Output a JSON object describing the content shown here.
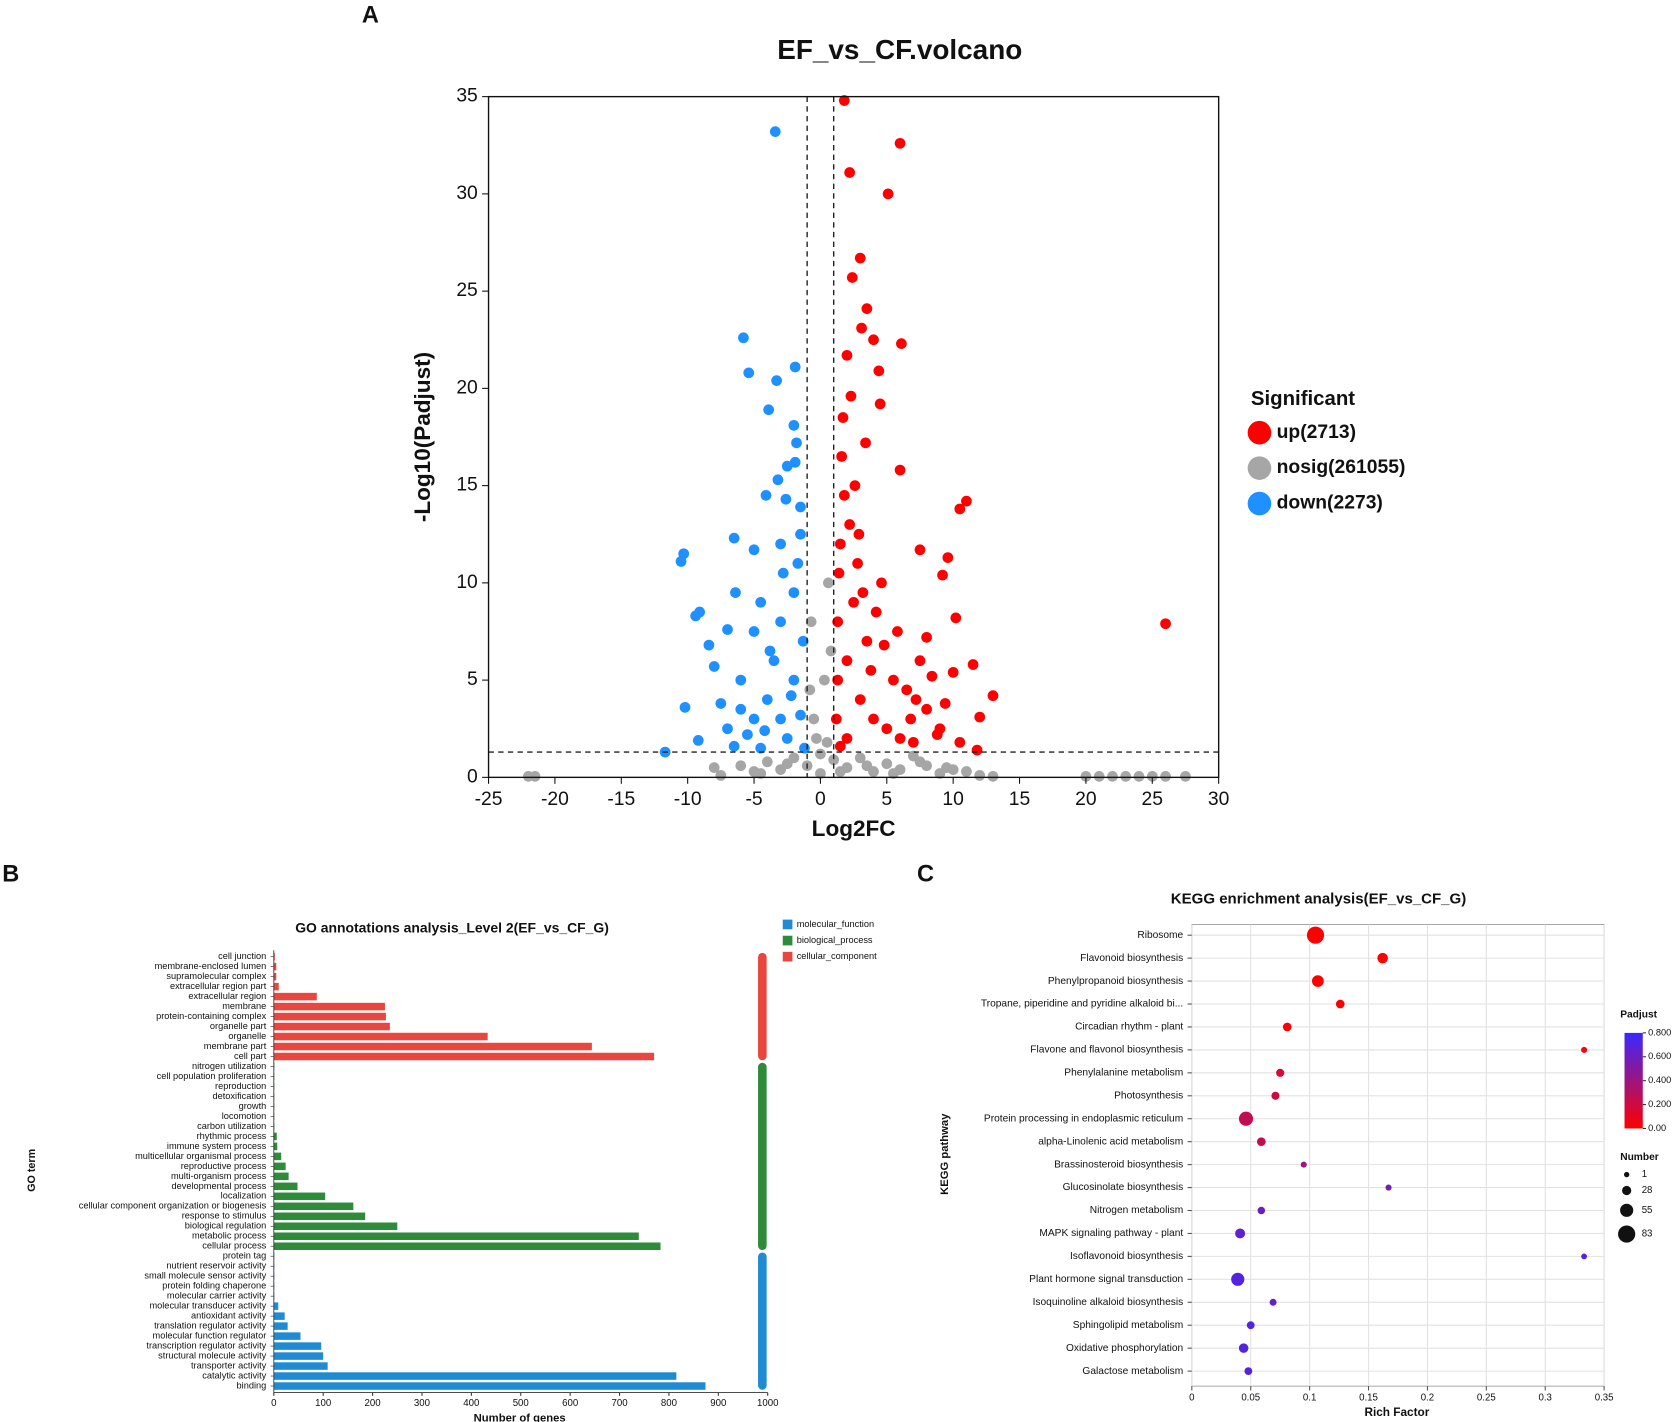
{
  "chart_data": [
    {
      "type": "scatter",
      "panel": "A",
      "title": "EF_vs_CF.volcano",
      "x_label": "Log2FC",
      "y_label": "-Log10(Padjust)",
      "xlim": [
        -25,
        30
      ],
      "ylim": [
        0,
        35
      ],
      "xticks": [
        -25,
        -20,
        -15,
        -10,
        -5,
        0,
        5,
        10,
        15,
        20,
        25,
        30
      ],
      "yticks": [
        0,
        5,
        10,
        15,
        20,
        25,
        30,
        35
      ],
      "thresholds": {
        "x": [
          -1,
          1
        ],
        "y": 1.3
      },
      "legend_title": "Significant",
      "series": [
        {
          "name": "up(2713)",
          "color": "#ff0000",
          "x": [
            1.8,
            6,
            2.2,
            5.1,
            3,
            2.4,
            3.5,
            3.1,
            4,
            6.1,
            2,
            4.4,
            2.3,
            4.5,
            3.4,
            6,
            11,
            10.5,
            7.5,
            9.6,
            9.2,
            26,
            11.5,
            10,
            13,
            12,
            11.8,
            1.3,
            2,
            3,
            4,
            5,
            6,
            7,
            8,
            1.5,
            2.5,
            1.2,
            3.5,
            5.5,
            7.5,
            9,
            10.5,
            2,
            1.5,
            1.4,
            1.8,
            2.2,
            2.8,
            3.2,
            4.2,
            4.8,
            5.8,
            6.5,
            7.2,
            8.4,
            8.8,
            9.4,
            10.2,
            1.6,
            2.6,
            3.8,
            4.6,
            6.8,
            8,
            1.3,
            1.7,
            2.9
          ],
          "y": [
            34.8,
            32.6,
            31.1,
            30,
            26.7,
            25.7,
            24.1,
            23.1,
            22.5,
            22.3,
            21.7,
            20.9,
            19.6,
            19.2,
            17.2,
            15.8,
            14.2,
            13.8,
            11.7,
            11.3,
            10.4,
            7.9,
            5.8,
            5.4,
            4.2,
            3.1,
            1.4,
            8,
            6,
            4,
            3,
            2.5,
            2,
            1.8,
            3.5,
            12,
            9,
            3,
            7,
            5,
            6,
            2.5,
            1.8,
            2,
            1.6,
            10.5,
            14.5,
            13,
            11,
            9.5,
            8.5,
            6.8,
            7.5,
            4.5,
            4,
            5.2,
            2.2,
            3.8,
            8.2,
            16.5,
            15,
            5.5,
            10,
            3,
            7.2,
            5,
            18.5,
            12.5
          ]
        },
        {
          "name": "nosig(261055)",
          "color": "#a6a6a6",
          "x": [
            -22,
            -21.5,
            -8,
            -7.5,
            -6,
            -5,
            -4,
            -3,
            -2,
            -1,
            0,
            1,
            2,
            3,
            4,
            5,
            6,
            7,
            8,
            9,
            10,
            12,
            13,
            20,
            21,
            22,
            23,
            24,
            25,
            26,
            27.5,
            -0.5,
            0.3,
            -0.7,
            0.6,
            -0.3,
            0.5,
            -0.8,
            0.8,
            0,
            -4.5,
            -2.5,
            1.5,
            3.5,
            5.5,
            7.5,
            9.5,
            11
          ],
          "y": [
            0.05,
            0.05,
            0.5,
            0.1,
            0.6,
            0.3,
            0.8,
            0.4,
            1,
            0.6,
            0.2,
            0.9,
            0.5,
            1,
            0.3,
            0.7,
            0.4,
            1.1,
            0.6,
            0.2,
            0.4,
            0.1,
            0.05,
            0.05,
            0.05,
            0.05,
            0.05,
            0.05,
            0.05,
            0.05,
            0.05,
            3,
            5,
            8,
            10,
            2,
            1.8,
            4.5,
            6.5,
            1.2,
            0.2,
            0.7,
            0.3,
            0.6,
            0.2,
            0.8,
            0.5,
            0.3
          ]
        },
        {
          "name": "down(2273)",
          "color": "#1e90ff",
          "x": [
            -3.4,
            -5.8,
            -5.4,
            -3.3,
            -1.9,
            -3.9,
            -2,
            -1.8,
            -1.9,
            -2.5,
            -3.2,
            -4.1,
            -2.6,
            -1.5,
            -6.5,
            -10.3,
            -10.5,
            -5,
            -3,
            -1.5,
            -6.4,
            -9.1,
            -9.4,
            -7,
            -5,
            -3,
            -8.4,
            -8,
            -6,
            -4,
            -10.2,
            -7.5,
            -5,
            -3,
            -2,
            -1.3,
            -9.2,
            -11.7,
            -6.5,
            -4.5,
            -2.5,
            -1.2,
            -7,
            -3.5,
            -2,
            -4.5,
            -6,
            -1.5,
            -2.8,
            -3.8,
            -5.5,
            -1.7,
            -4.2,
            -2.2
          ],
          "y": [
            33.2,
            22.6,
            20.8,
            20.4,
            21.1,
            18.9,
            18.1,
            17.2,
            16.2,
            16,
            15.3,
            14.5,
            14.3,
            13.9,
            12.3,
            11.5,
            11.1,
            11.7,
            12,
            12.5,
            9.5,
            8.5,
            8.3,
            7.6,
            7.5,
            8,
            6.8,
            5.7,
            5,
            4,
            3.6,
            3.8,
            3,
            3,
            5,
            7,
            1.9,
            1.3,
            1.6,
            1.5,
            2,
            1.5,
            2.5,
            6,
            9.5,
            9,
            3.5,
            3.2,
            10.5,
            6.5,
            2.2,
            11,
            2.4,
            4.2
          ]
        }
      ]
    },
    {
      "type": "bar",
      "orientation": "horizontal",
      "panel": "B",
      "title": "GO annotations analysis_Level 2(EF_vs_CF_G)",
      "x_label": "Number of genes",
      "y_label": "GO term",
      "xlim": [
        0,
        1000
      ],
      "xticks": [
        0,
        100,
        200,
        300,
        400,
        500,
        600,
        700,
        800,
        900,
        1000
      ],
      "series": [
        {
          "name": "molecular_function",
          "color": "#1f8bd3",
          "categories": [
            "protein tag",
            "nutrient reservoir activity",
            "small molecule sensor activity",
            "protein folding chaperone",
            "molecular carrier activity",
            "molecular transducer activity",
            "antioxidant activity",
            "translation regulator activity",
            "molecular function regulator",
            "transcription regulator activity",
            "structural molecule activity",
            "transporter activity",
            "catalytic activity",
            "binding"
          ],
          "values": [
            1,
            1,
            1,
            1,
            1,
            9,
            22,
            28,
            54,
            96,
            100,
            109,
            815,
            874
          ]
        },
        {
          "name": "biological_process",
          "color": "#2e8b3a",
          "categories": [
            "nitrogen utilization",
            "cell population proliferation",
            "reproduction",
            "detoxification",
            "growth",
            "locomotion",
            "carbon utilization",
            "rhythmic process",
            "immune system process",
            "multicellular organismal process",
            "reproductive process",
            "multi-organism process",
            "developmental process",
            "localization",
            "cellular component organization or biogenesis",
            "response to stimulus",
            "biological regulation",
            "metabolic process",
            "cellular process"
          ],
          "values": [
            1,
            1,
            1,
            1,
            1,
            1,
            1,
            6,
            7,
            15,
            24,
            30,
            48,
            104,
            161,
            185,
            250,
            739,
            783
          ]
        },
        {
          "name": "cellular_component",
          "color": "#e8463e",
          "categories": [
            "cell junction",
            "membrane-enclosed lumen",
            "supramolecular complex",
            "extracellular region part",
            "extracellular region",
            "membrane",
            "protein-containing complex",
            "organelle part",
            "organelle",
            "membrane part",
            "cell part"
          ],
          "values": [
            2,
            5,
            5,
            10,
            87,
            225,
            227,
            235,
            433,
            644,
            770
          ]
        }
      ]
    },
    {
      "type": "bubble",
      "panel": "C",
      "title": "KEGG enrichment analysis(EF_vs_CF_G)",
      "x_label": "Rich Factor",
      "y_label": "KEGG pathway",
      "categories": [
        "Ribosome",
        "Flavonoid biosynthesis",
        "Phenylpropanoid biosynthesis",
        "Tropane, piperidine and pyridine alkaloid bi...",
        "Circadian rhythm - plant",
        "Flavone and flavonol biosynthesis",
        "Phenylalanine metabolism",
        "Photosynthesis",
        "Protein processing in endoplasmic reticulum",
        "alpha-Linolenic acid metabolism",
        "Brassinosteroid biosynthesis",
        "Glucosinolate biosynthesis",
        "Nitrogen metabolism",
        "MAPK signaling pathway - plant",
        "Isoflavonoid biosynthesis",
        "Plant hormone signal transduction",
        "Isoquinoline alkaloid biosynthesis",
        "Sphingolipid metabolism",
        "Oxidative phosphorylation",
        "Galactose metabolism"
      ],
      "x": [
        0.105,
        0.162,
        0.107,
        0.126,
        0.081,
        0.333,
        0.075,
        0.071,
        0.046,
        0.059,
        0.095,
        0.167,
        0.059,
        0.041,
        0.333,
        0.039,
        0.069,
        0.05,
        0.044,
        0.048
      ],
      "sizes": [
        83,
        37,
        45,
        24,
        24,
        6,
        20,
        20,
        62,
        24,
        6,
        6,
        16,
        33,
        4,
        55,
        12,
        18,
        30,
        18
      ],
      "padjust": [
        0.0,
        0.0,
        0.0,
        0.02,
        0.03,
        0.05,
        0.15,
        0.2,
        0.25,
        0.25,
        0.4,
        0.55,
        0.6,
        0.65,
        0.7,
        0.7,
        0.65,
        0.7,
        0.7,
        0.7
      ],
      "xlim": [
        0,
        0.35
      ],
      "xticks": [
        0,
        0.05,
        0.1,
        0.15,
        0.2,
        0.25,
        0.3,
        0.35
      ],
      "grid": true,
      "colorbar_title": "Padjust",
      "colorlim": [
        0,
        0.8
      ],
      "colors": [
        "#ff0000",
        "#3b28ff"
      ],
      "colorbar_ticks": [
        {
          "value": 0.8,
          "label": "0.800"
        },
        {
          "value": 0.6,
          "label": "0.600"
        },
        {
          "value": 0.4,
          "label": "0.400"
        },
        {
          "value": 0.2,
          "label": "0.200"
        },
        {
          "value": 0,
          "label": "0.00"
        }
      ],
      "size_legend_title": "Number",
      "size_legend": [
        1,
        28,
        55,
        83
      ]
    }
  ]
}
